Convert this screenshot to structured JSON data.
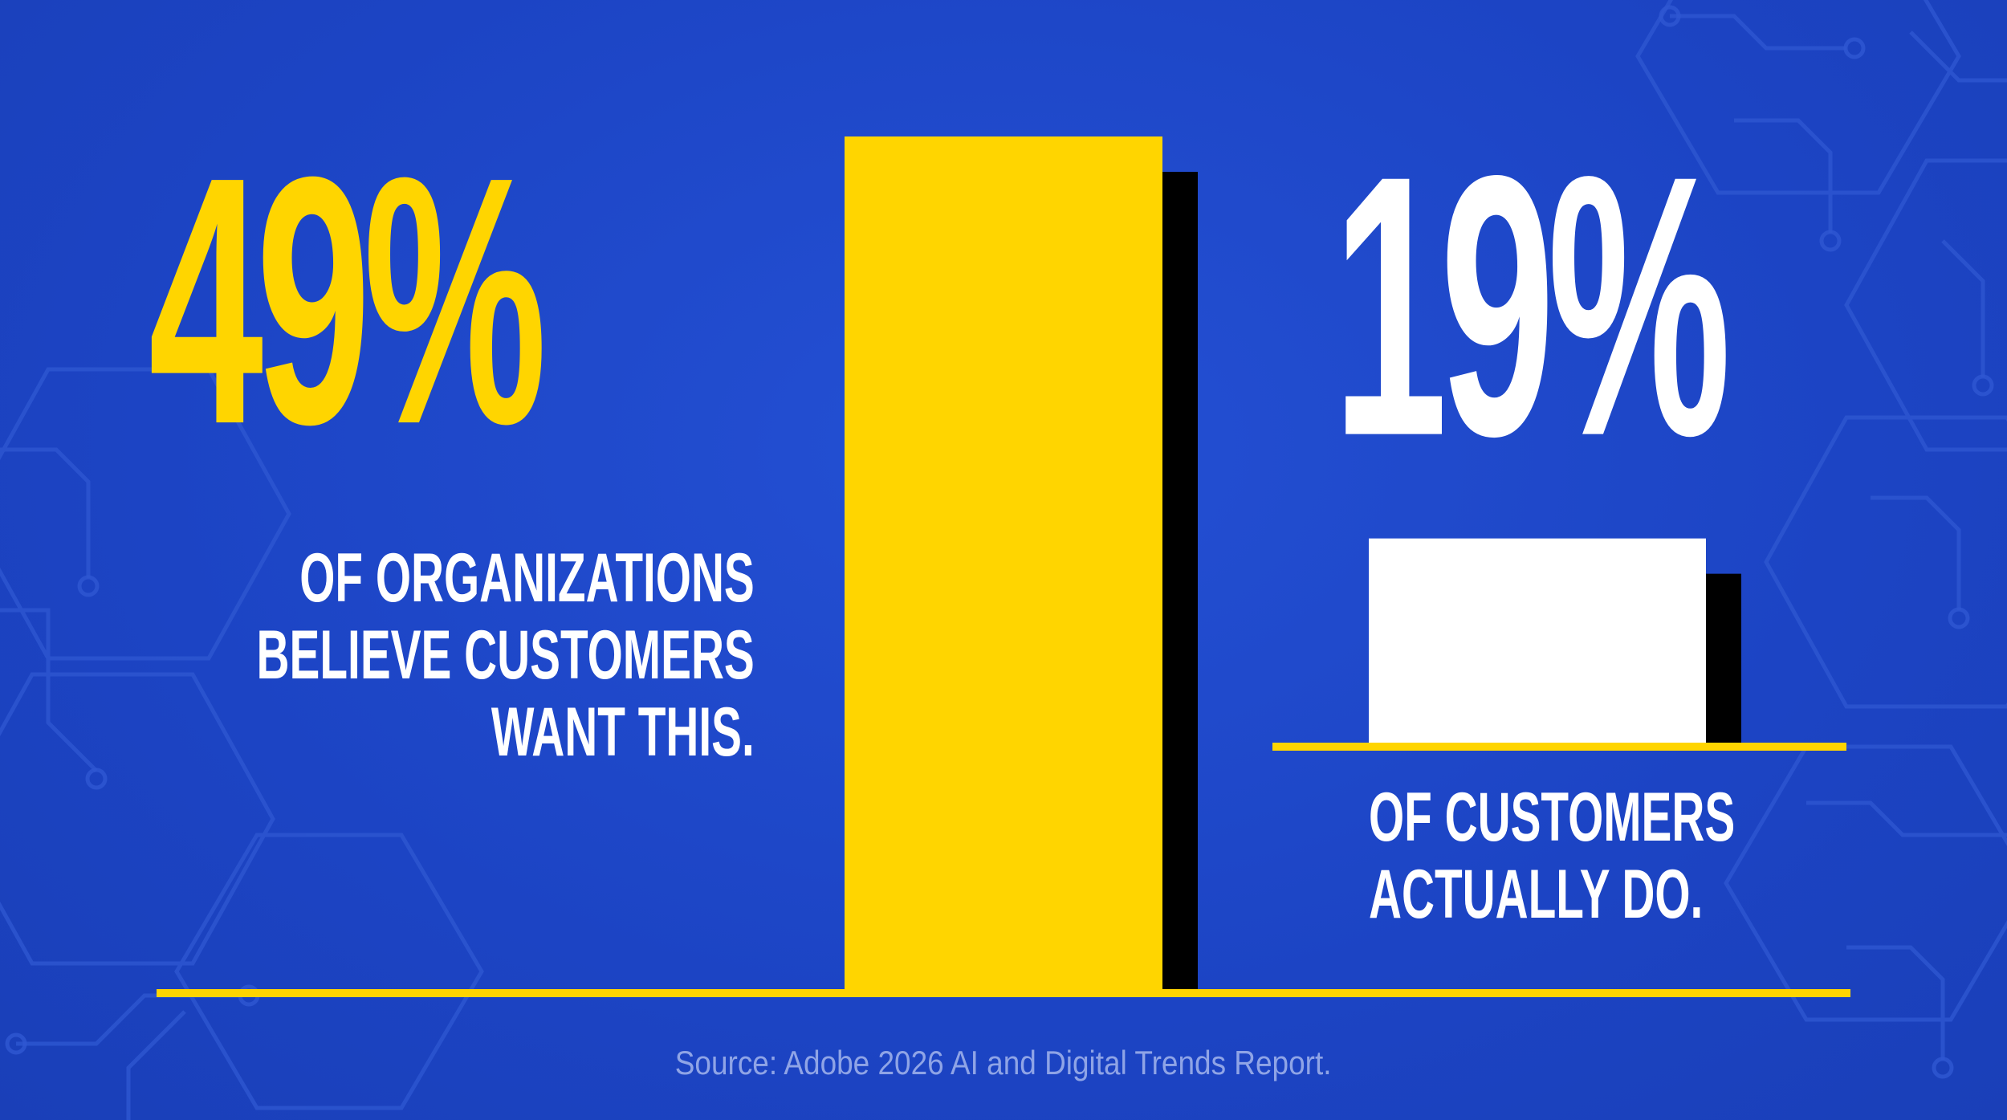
{
  "chart_data": {
    "type": "bar",
    "title": "",
    "categories": [
      "Organizations believe customers want this",
      "Customers actually do"
    ],
    "values": [
      49,
      19
    ],
    "unit": "%",
    "ylim": [
      0,
      50
    ],
    "grid": false,
    "series": [
      {
        "name": "Organizations",
        "value": 49,
        "label": "49%",
        "caption_lines": [
          "OF ORGANIZATIONS",
          "BELIEVE CUSTOMERS",
          "WANT THIS."
        ],
        "color": "#ffd500"
      },
      {
        "name": "Customers",
        "value": 19,
        "label": "19%",
        "caption_lines": [
          "OF CUSTOMERS",
          "ACTUALLY DO."
        ],
        "color": "#ffffff"
      }
    ],
    "source": "Source: Adobe 2026 AI and Digital Trends Report."
  },
  "colors": {
    "background": "#1f49c9",
    "accent": "#ffd500",
    "shadow": "#000000",
    "source_text": "#8fa4e6",
    "pattern_line": "#3a62d8"
  }
}
